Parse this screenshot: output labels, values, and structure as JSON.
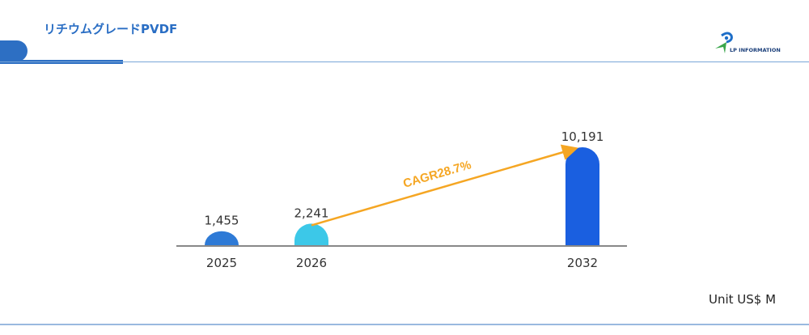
{
  "header": {
    "title": "リチウムグレードPVDF"
  },
  "logo": {
    "text": "LP INFORMATION"
  },
  "unit_label": "Unit US$ M",
  "colors": {
    "accent": "#2d6fc3",
    "arrow": "#f5a623"
  },
  "chart_data": {
    "type": "bar",
    "categories": [
      "2025",
      "2026",
      "2032"
    ],
    "values": [
      1455,
      2241,
      10191
    ],
    "value_labels": [
      "1,455",
      "2,241",
      "10,191"
    ],
    "bar_colors": [
      "#2e7ad6",
      "#3cc8e8",
      "#1a5fe0"
    ],
    "annotation": "CAGR28.7%",
    "unit": "US$ M",
    "grid": false
  }
}
